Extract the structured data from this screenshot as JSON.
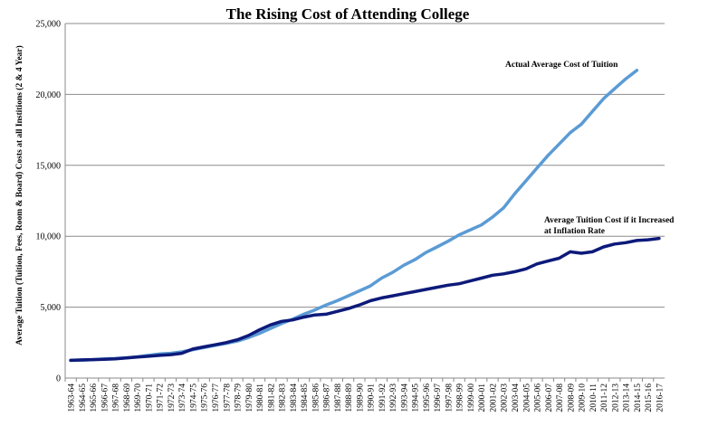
{
  "chart_data": {
    "type": "line",
    "title": "The Rising Cost of Attending College",
    "xlabel": "",
    "ylabel": "Average Tuition (Tuition, Fees, Room & Board) Costs at all Institions (2 & 4 Year)",
    "ylim": [
      0,
      25000
    ],
    "yticks": [
      "0",
      "5,000",
      "10,000",
      "15,000",
      "20,000",
      "25,000"
    ],
    "grid": "horizontal",
    "legend": "none",
    "categories": [
      "1963-64",
      "1964-65",
      "1965-66",
      "1966-67",
      "1967-68",
      "1968-69",
      "1969-70",
      "1970-71",
      "1971-72",
      "1972-73",
      "1973-74",
      "1974-75",
      "1975-76",
      "1976-77",
      "1977-78",
      "1978-79",
      "1979-80",
      "1980-81",
      "1981-82",
      "1982-83",
      "1983-84",
      "1984-85",
      "1985-86",
      "1986-87",
      "1987-88",
      "1988-89",
      "1989-90",
      "1990-91",
      "1991-92",
      "1992-93",
      "1993-94",
      "1994-95",
      "1995-96",
      "1996-97",
      "1997-98",
      "1998-99",
      "1999-00",
      "2000-01",
      "2001-02",
      "2002-03",
      "2003-04",
      "2004-05",
      "2005-06",
      "2006-07",
      "2007-08",
      "2008-09",
      "2009-10",
      "2010-11",
      "2011-12",
      "2012-13",
      "2013-14",
      "2014-15",
      "2015-16",
      "2016-17"
    ],
    "series": [
      {
        "color": "#5b9bd5",
        "values": [
          1250,
          1250,
          1300,
          1350,
          1380,
          1430,
          1500,
          1600,
          1700,
          1750,
          1850,
          2000,
          2150,
          2300,
          2450,
          2600,
          2850,
          3150,
          3500,
          3850,
          4150,
          4500,
          4800,
          5150,
          5450,
          5800,
          6150,
          6500,
          7050,
          7450,
          7950,
          8350,
          8850,
          9250,
          9650,
          10100,
          10450,
          10800,
          11350,
          12000,
          13000,
          13900,
          14800,
          15700,
          16500,
          17300,
          17900,
          18800,
          19700,
          20400,
          21100,
          21700,
          null,
          null
        ],
        "annotation": "Actual Average Cost of Tuition"
      },
      {
        "color": "#0d1a7a",
        "values": [
          1250,
          1280,
          1300,
          1320,
          1360,
          1420,
          1480,
          1540,
          1600,
          1650,
          1750,
          2050,
          2200,
          2350,
          2500,
          2700,
          3000,
          3400,
          3750,
          4000,
          4100,
          4300,
          4450,
          4500,
          4700,
          4900,
          5150,
          5450,
          5650,
          5800,
          5950,
          6100,
          6250,
          6400,
          6550,
          6650,
          6850,
          7050,
          7250,
          7350,
          7500,
          7700,
          8050,
          8250,
          8450,
          8900,
          8800,
          8900,
          9250,
          9450,
          9550,
          9700,
          9750,
          9850
        ],
        "annotation": "Average Tuition Cost if it Increased at Inflation Rate",
        "annotation_lines": [
          "Average Tuition Cost if it Increased",
          "at Inflation Rate"
        ]
      }
    ]
  }
}
